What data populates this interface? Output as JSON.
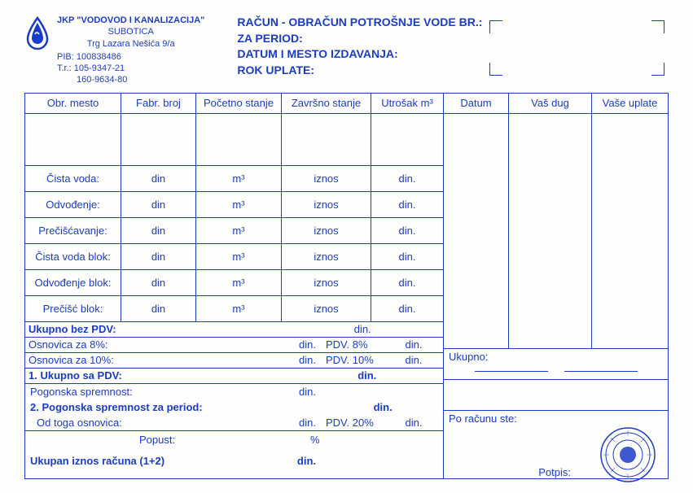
{
  "company": {
    "name": "JKP \"VODOVOD I KANALIZACIJA\"",
    "city": "SUBOTICA",
    "address": "Trg Lazara Nešića 9/a",
    "pib": "PIB: 100838486",
    "tr1": "T.r.: 105-9347-21",
    "tr2": "160-9634-80"
  },
  "title": {
    "l1": "RAČUN - OBRAČUN POTROŠNJE VODE BR.:",
    "l2": "ZA PERIOD:",
    "l3": "DATUM I MESTO IZDAVANJA:",
    "l4": "ROK UPLATE:"
  },
  "left_headers": {
    "h1": "Obr. mesto",
    "h2": "Fabr. broj",
    "h3": "Početno stanje",
    "h4": "Završno stanje",
    "h5": "Utrošak m³"
  },
  "right_headers": {
    "h1": "Datum",
    "h2": "Vaš dug",
    "h3": "Vaše uplate"
  },
  "items": [
    {
      "label": "Čista voda:",
      "unit_price": "din",
      "unit": "m³",
      "amount": "iznos",
      "total": "din."
    },
    {
      "label": "Odvođenje:",
      "unit_price": "din",
      "unit": "m³",
      "amount": "iznos",
      "total": "din."
    },
    {
      "label": "Prečišćavanje:",
      "unit_price": "din",
      "unit": "m³",
      "amount": "iznos",
      "total": "din."
    },
    {
      "label": "Čista voda blok:",
      "unit_price": "din",
      "unit": "m³",
      "amount": "iznos",
      "total": "din."
    },
    {
      "label": "Odvođenje blok:",
      "unit_price": "din",
      "unit": "m³",
      "amount": "iznos",
      "total": "din."
    },
    {
      "label": "Prečišć blok:",
      "unit_price": "din",
      "unit": "m³",
      "amount": "iznos",
      "total": "din."
    }
  ],
  "summary": {
    "ukupno_bez_pdv": "Ukupno bez PDV:",
    "osnovica8": "Osnovica za 8%:",
    "osnovica10": "Osnovica za 10%:",
    "ukupno_sa_pdv": "1. Ukupno sa PDV:",
    "pdv8": "PDV. 8%",
    "pdv10": "PDV. 10%",
    "din": "din."
  },
  "section2": {
    "l1": "Pogonska spremnost:",
    "l2": "2. Pogonska spremnost za period:",
    "l3": "Od toga osnovica:",
    "pdv20": "PDV. 20%",
    "din": "din."
  },
  "bottom": {
    "popust": "Popust:",
    "percent": "%",
    "ukupan": "Ukupan iznos računa (1+2)",
    "din": "din."
  },
  "right": {
    "ukupno": "Ukupno:",
    "poracunu": "Po računu ste:"
  },
  "potpis": "Potpis:",
  "colors": {
    "primary": "#1a3cc8",
    "background": "#fefefe"
  }
}
